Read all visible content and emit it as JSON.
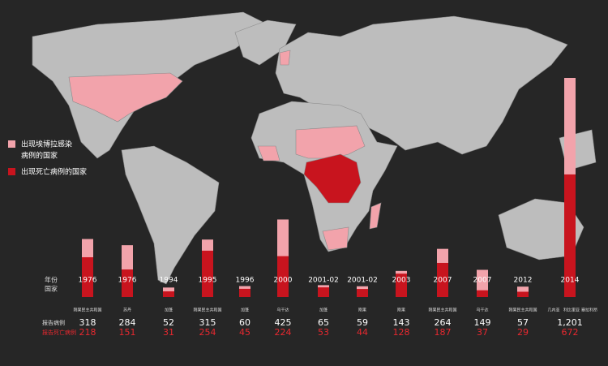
{
  "chart_data": {
    "type": "bar",
    "legend": [
      {
        "lines": [
          "出现埃博拉感染",
          "病例的国家"
        ],
        "color": "#f2a3ab"
      },
      {
        "lines": [
          "出现死亡病例的国家"
        ],
        "color": "#c8141e"
      }
    ],
    "row_labels": {
      "year": "年份",
      "country": "国家"
    },
    "categories": [
      "1976",
      "1976",
      "1994",
      "1995",
      "1996",
      "2000",
      "2001-02",
      "2001-02",
      "2003",
      "2007",
      "2007",
      "2012",
      "2014"
    ],
    "countries": [
      "刚果民主共和国",
      "苏丹",
      "加蓬",
      "刚果民主共和国",
      "加蓬",
      "乌干达",
      "加蓬",
      "刚果",
      "刚果",
      "刚果民主共和国",
      "乌干达",
      "刚果民主共和国",
      [
        "几内亚",
        "利比里亚",
        "塞拉利昂"
      ]
    ],
    "series": [
      {
        "name": "报告病例",
        "color": "#f2a3ab",
        "values": [
          318,
          284,
          52,
          315,
          60,
          425,
          65,
          59,
          143,
          264,
          149,
          57,
          1201
        ],
        "value_labels": [
          "318",
          "284",
          "52",
          "315",
          "60",
          "425",
          "65",
          "59",
          "143",
          "264",
          "149",
          "57",
          "1,201"
        ]
      },
      {
        "name": "报告死亡病例",
        "color": "#c8141e",
        "values": [
          218,
          151,
          31,
          254,
          45,
          224,
          53,
          44,
          128,
          187,
          37,
          29,
          672
        ]
      }
    ]
  }
}
